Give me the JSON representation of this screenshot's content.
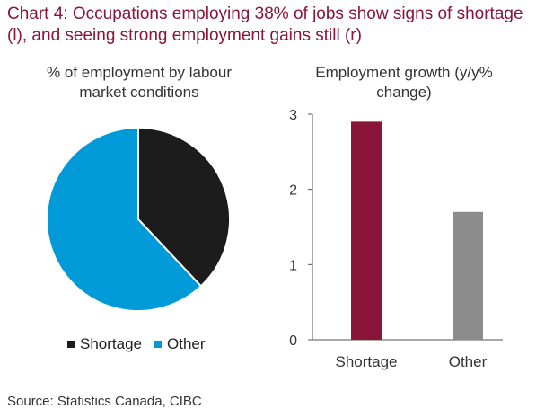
{
  "title": "Chart 4: Occupations employing 38% of jobs show signs of shortage (l), and seeing strong employment gains still (r)",
  "source": "Source: Statistics Canada, CIBC",
  "chart_data": [
    {
      "type": "pie",
      "title": "% of employment by labour market conditions",
      "categories": [
        "Shortage",
        "Other"
      ],
      "values": [
        38,
        62
      ],
      "colors": [
        "#1c1c1c",
        "#009ad9"
      ],
      "legend": "bottom"
    },
    {
      "type": "bar",
      "title": "Employment growth (y/y% change)",
      "categories": [
        "Shortage",
        "Other"
      ],
      "values": [
        2.9,
        1.7
      ],
      "colors": [
        "#8a1538",
        "#8c8c8c"
      ],
      "ylim": [
        0,
        3
      ],
      "yticks": [
        "0",
        "1",
        "2",
        "3"
      ],
      "grid": false
    }
  ]
}
